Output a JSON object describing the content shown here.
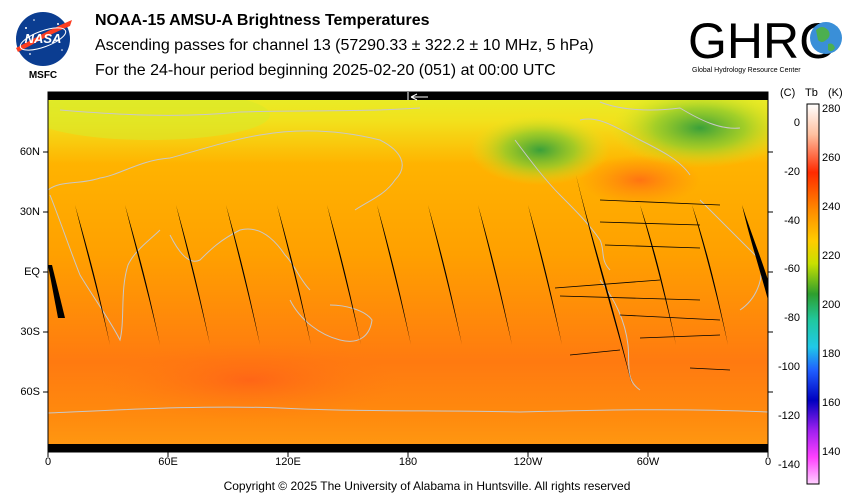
{
  "header": {
    "title": "NOAA-15 AMSU-A Brightness Temperatures",
    "line2": "Ascending passes for channel 13 (57290.33 ± 322.2 ± 10 MHz, 5 hPa)",
    "line3": "For the 24-hour period beginning 2025-02-20 (051) at 00:00 UTC"
  },
  "nasa_logo": {
    "text": "NASA",
    "sublabel": "MSFC"
  },
  "ghrc_logo": {
    "text": "GHRC",
    "tagline": "Global Hydrology Resource Center"
  },
  "map": {
    "lat_labels": [
      "60N",
      "30N",
      "EQ",
      "30S",
      "60S"
    ],
    "lon_labels": [
      "0",
      "60E",
      "120E",
      "180",
      "120W",
      "60W",
      "0"
    ]
  },
  "colorbar": {
    "header_c": "(C)",
    "header_tb": "Tb",
    "header_k": "(K)",
    "celsius_ticks": [
      "0",
      "-20",
      "-40",
      "-60",
      "-80",
      "-100",
      "-120",
      "-140"
    ],
    "kelvin_ticks": [
      "280",
      "260",
      "240",
      "220",
      "200",
      "180",
      "160",
      "140"
    ],
    "colors": [
      "#ffffff",
      "#ff8c00",
      "#ff2a00",
      "#ffcc00",
      "#c8e000",
      "#2e9e2e",
      "#20c8c8",
      "#0000ff",
      "#a020f0",
      "#ff40ff",
      "#ffd0ff"
    ]
  },
  "footer": {
    "copyright": "Copyright © 2025 The University of Alabama in Huntsville.  All rights reserved"
  }
}
